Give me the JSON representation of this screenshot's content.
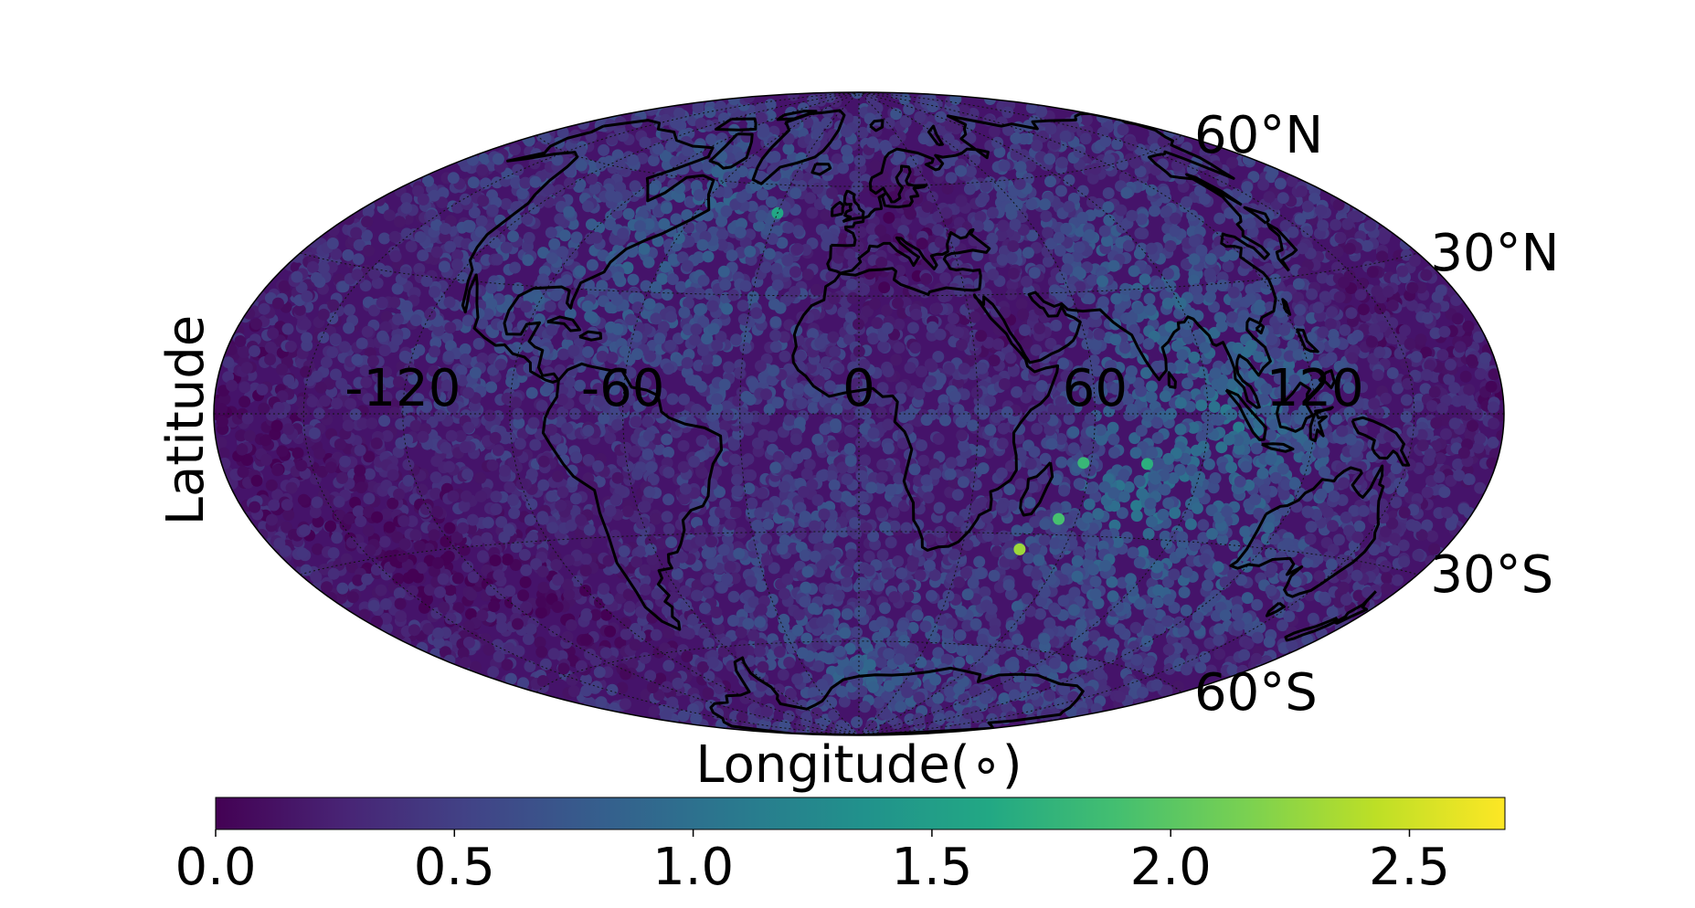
{
  "chart_data": {
    "type": "map-scatter",
    "projection": "hammer",
    "xlabel": "Longitude( $^\\circ$ )",
    "xlabel_display": "Longitude(∘)",
    "ylabel": "Latitude",
    "longitude_ticks": [
      {
        "value": -120,
        "label": "-120"
      },
      {
        "value": -60,
        "label": "-60"
      },
      {
        "value": 0,
        "label": "0"
      },
      {
        "value": 60,
        "label": "60"
      },
      {
        "value": 120,
        "label": "120"
      }
    ],
    "latitude_ticks": [
      {
        "value": 60,
        "label": "60°N"
      },
      {
        "value": 30,
        "label": "30°N"
      },
      {
        "value": -30,
        "label": "30°S"
      },
      {
        "value": -60,
        "label": "60°S"
      }
    ],
    "grid": true,
    "colormap": "viridis",
    "colorbar": {
      "orientation": "horizontal",
      "range": [
        0,
        2.7
      ],
      "ticks": [
        {
          "value": 0.0,
          "label": "0.0"
        },
        {
          "value": 0.5,
          "label": "0.5"
        },
        {
          "value": 1.0,
          "label": "1.0"
        },
        {
          "value": 1.5,
          "label": "1.5"
        },
        {
          "value": 2.0,
          "label": "2.0"
        },
        {
          "value": 2.5,
          "label": "2.5"
        }
      ]
    },
    "value_regions": [
      {
        "lon": -170,
        "lat": 0,
        "level": 0.05
      },
      {
        "lon": -140,
        "lat": -30,
        "level": 0.0
      },
      {
        "lon": -110,
        "lat": -45,
        "level": 0.05
      },
      {
        "lon": -150,
        "lat": 25,
        "level": 0.35
      },
      {
        "lon": -100,
        "lat": 30,
        "level": 0.6
      },
      {
        "lon": -70,
        "lat": 35,
        "level": 0.75
      },
      {
        "lon": -50,
        "lat": 60,
        "level": 0.8
      },
      {
        "lon": -40,
        "lat": 25,
        "level": 0.65
      },
      {
        "lon": -30,
        "lat": 0,
        "level": 0.45
      },
      {
        "lon": -60,
        "lat": -15,
        "level": 0.25
      },
      {
        "lon": -15,
        "lat": -30,
        "level": 0.55
      },
      {
        "lon": 20,
        "lat": 55,
        "level": 0.05
      },
      {
        "lon": 10,
        "lat": 35,
        "level": 0.05
      },
      {
        "lon": 40,
        "lat": 20,
        "level": 0.15
      },
      {
        "lon": 20,
        "lat": 0,
        "level": 0.45
      },
      {
        "lon": 25,
        "lat": -30,
        "level": 0.2
      },
      {
        "lon": 70,
        "lat": 55,
        "level": 0.6
      },
      {
        "lon": 80,
        "lat": 25,
        "level": 0.85
      },
      {
        "lon": 100,
        "lat": 0,
        "level": 1.05
      },
      {
        "lon": 75,
        "lat": -20,
        "level": 1.0
      },
      {
        "lon": 110,
        "lat": -35,
        "level": 0.65
      },
      {
        "lon": 150,
        "lat": 20,
        "level": 0.15
      },
      {
        "lon": 160,
        "lat": -10,
        "level": 0.3
      },
      {
        "lon": 0,
        "lat": -70,
        "level": 0.8
      },
      {
        "lon": -100,
        "lat": -70,
        "level": 0.2
      },
      {
        "lon": 100,
        "lat": -70,
        "level": 0.55
      }
    ],
    "extreme_points": [
      {
        "lon": 47,
        "lat": -34,
        "level": 2.3
      },
      {
        "lon": 55,
        "lat": -26,
        "level": 1.9
      },
      {
        "lon": 58,
        "lat": -12,
        "level": 1.8
      },
      {
        "lon": -30,
        "lat": 52,
        "level": 1.6
      },
      {
        "lon": 75,
        "lat": -12,
        "level": 1.7
      }
    ]
  }
}
